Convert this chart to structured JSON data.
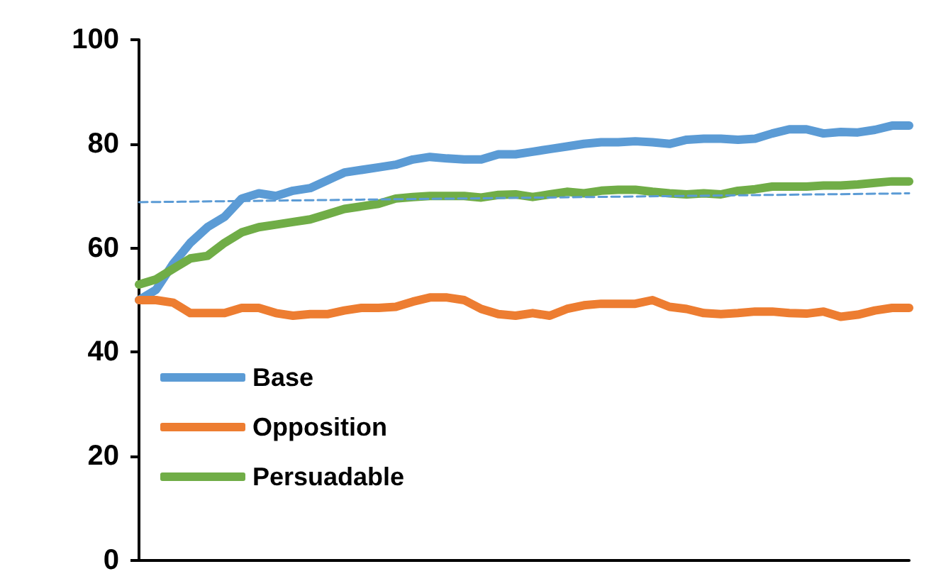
{
  "chart_data": {
    "type": "line",
    "categories": [
      null,
      null,
      null,
      null,
      null,
      null,
      null,
      null,
      null,
      null,
      null,
      null,
      null,
      null,
      null,
      null,
      null,
      null,
      null,
      null,
      null,
      null,
      null,
      null,
      null,
      null,
      null,
      null,
      null,
      null,
      null,
      null,
      null,
      null,
      null,
      null,
      null,
      null,
      null,
      null,
      null,
      null,
      null,
      null,
      null,
      null
    ],
    "ylim": [
      0,
      100
    ],
    "yticks": [
      0,
      20,
      40,
      60,
      80,
      100
    ],
    "grid": false,
    "legend": "bottom left",
    "tick_labels": "y",
    "marker": "none",
    "line_style": "solid",
    "series": [
      {
        "name": "Base",
        "color": "#5b9bd5",
        "values": [
          50,
          52,
          57,
          61,
          64,
          66,
          69.5,
          70.5,
          70,
          71,
          71.5,
          73,
          74.5,
          75,
          75.5,
          76,
          77,
          77.5,
          77.2,
          77,
          77,
          78,
          78,
          78.5,
          79,
          79.5,
          80,
          80.3,
          80.3,
          80.5,
          80.3,
          80,
          80.8,
          81,
          81,
          80.8,
          81,
          82,
          82.8,
          82.8,
          82,
          82.3,
          82.2,
          82.7,
          83.5,
          83.5
        ]
      },
      {
        "name": "Opposition",
        "color": "#ed7d31",
        "values": [
          50,
          50,
          49.5,
          47.5,
          47.5,
          47.5,
          48.5,
          48.5,
          47.5,
          47,
          47.3,
          47.3,
          48,
          48.5,
          48.5,
          48.7,
          49.7,
          50.5,
          50.5,
          50,
          48.3,
          47.3,
          47,
          47.5,
          47,
          48.3,
          49,
          49.3,
          49.3,
          49.3,
          50,
          48.7,
          48.3,
          47.5,
          47.3,
          47.5,
          47.8,
          47.8,
          47.5,
          47.4,
          47.8,
          46.8,
          47.2,
          48,
          48.5,
          48.5
        ]
      },
      {
        "name": "Persuadable",
        "color": "#70ad47",
        "values": [
          53,
          54,
          56,
          58,
          58.5,
          61,
          63,
          64,
          64.5,
          65,
          65.5,
          66.5,
          67.5,
          68,
          68.5,
          69.5,
          69.8,
          70,
          70,
          70,
          69.7,
          70.2,
          70.3,
          69.8,
          70.3,
          70.8,
          70.5,
          71,
          71.2,
          71.2,
          70.8,
          70.5,
          70.3,
          70.5,
          70.3,
          71,
          71.3,
          71.8,
          71.8,
          71.8,
          72,
          72,
          72.2,
          72.5,
          72.8,
          72.8
        ]
      },
      {
        "type": "line",
        "color": "#5b9bd5",
        "line_style": "dashed",
        "values": [
          68.8,
          null,
          null,
          null,
          null,
          null,
          null,
          null,
          null,
          null,
          null,
          null,
          null,
          null,
          null,
          null,
          null,
          null,
          null,
          null,
          null,
          null,
          null,
          null,
          null,
          null,
          null,
          null,
          null,
          null,
          null,
          null,
          null,
          null,
          null,
          null,
          null,
          null,
          null,
          null,
          null,
          null,
          null,
          null,
          null,
          70.5
        ]
      }
    ]
  }
}
